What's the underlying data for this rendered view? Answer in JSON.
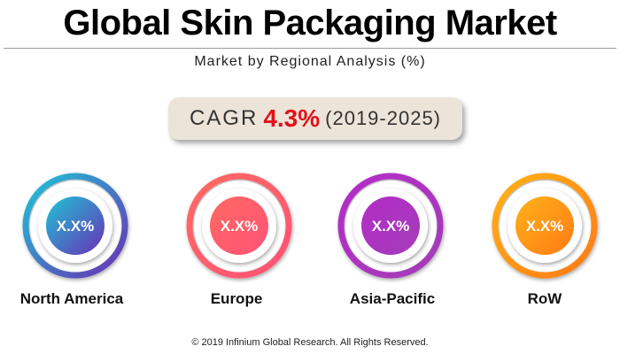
{
  "title": "Global Skin Packaging Market",
  "subtitle": "Market by Regional Analysis (%)",
  "cagr": {
    "label": "CAGR",
    "value": "4.3%",
    "period": "(2019-2025)",
    "value_color": "#e2101a"
  },
  "chart_data": {
    "type": "pie",
    "title": "Global Skin Packaging Market",
    "subtitle": "Market by Regional Analysis (%)",
    "categories": [
      "North America",
      "Europe",
      "Asia-Pacific",
      "RoW"
    ],
    "values": [
      "X.X%",
      "X.X%",
      "X.X%",
      "X.X%"
    ],
    "colors": [
      [
        "#1fc4d6",
        "#6a2fb5"
      ],
      [
        "#ff6a62",
        "#ff5277"
      ],
      [
        "#b42cc8",
        "#a33db8"
      ],
      [
        "#ffb21a",
        "#ff7a14"
      ]
    ]
  },
  "footer": "© 2019 Infinium Global Research. All Rights Reserved."
}
